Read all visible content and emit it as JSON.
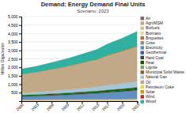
{
  "chart_data": {
    "type": "area",
    "stacked": true,
    "title": "Demand: Energy Demand Final Units",
    "subtitle": "Scenario: 2023",
    "ylabel": "Million GigaJoules",
    "x": [
      2000,
      2003,
      2006,
      2009,
      2012,
      2015,
      2017,
      2020,
      2023
    ],
    "series": [
      {
        "name": "Air",
        "color": "#8B6355",
        "values": [
          5,
          5,
          6,
          6,
          7,
          7,
          8,
          8,
          9
        ]
      },
      {
        "name": "Agri/MSM",
        "color": "#C8A882",
        "values": [
          8,
          9,
          10,
          11,
          12,
          13,
          14,
          15,
          16
        ]
      },
      {
        "name": "Biofuels",
        "color": "#D4C090",
        "values": [
          6,
          7,
          7,
          8,
          9,
          9,
          10,
          11,
          12
        ]
      },
      {
        "name": "Biomass",
        "color": "#E8D8A0",
        "values": [
          60,
          62,
          65,
          67,
          70,
          72,
          75,
          78,
          82
        ]
      },
      {
        "name": "Briquettes",
        "color": "#B87040",
        "values": [
          5,
          5,
          6,
          6,
          7,
          7,
          7,
          8,
          8
        ]
      },
      {
        "name": "Coke",
        "color": "#909090",
        "values": [
          15,
          16,
          18,
          19,
          21,
          22,
          24,
          25,
          27
        ]
      },
      {
        "name": "Electricity",
        "color": "#6090C0",
        "values": [
          180,
          200,
          225,
          255,
          290,
          330,
          370,
          420,
          480
        ]
      },
      {
        "name": "Geothermal",
        "color": "#4060A0",
        "values": [
          3,
          3,
          4,
          4,
          5,
          5,
          6,
          6,
          7
        ]
      },
      {
        "name": "Hard Coal",
        "color": "#404040",
        "values": [
          30,
          33,
          37,
          40,
          44,
          48,
          52,
          56,
          60
        ]
      },
      {
        "name": "Heat",
        "color": "#006000",
        "values": [
          45,
          50,
          56,
          62,
          70,
          78,
          85,
          95,
          108
        ]
      },
      {
        "name": "Lignite",
        "color": "#80A060",
        "values": [
          12,
          13,
          14,
          16,
          17,
          18,
          20,
          21,
          23
        ]
      },
      {
        "name": "Municipal Solid Waste",
        "color": "#906030",
        "values": [
          5,
          5,
          6,
          6,
          7,
          7,
          8,
          8,
          9
        ]
      },
      {
        "name": "Natural Gas",
        "color": "#A0C8D8",
        "values": [
          120,
          135,
          155,
          175,
          200,
          225,
          255,
          290,
          330
        ]
      },
      {
        "name": "Oil",
        "color": "#C0A888",
        "values": [
          1100,
          1180,
          1280,
          1380,
          1500,
          1620,
          1750,
          1900,
          2050
        ]
      },
      {
        "name": "Petroleum Coke",
        "color": "#E8D840",
        "values": [
          4,
          4,
          5,
          5,
          6,
          6,
          7,
          7,
          8
        ]
      },
      {
        "name": "Solar",
        "color": "#C8A000",
        "values": [
          1,
          1,
          2,
          3,
          5,
          8,
          12,
          17,
          25
        ]
      },
      {
        "name": "Wind",
        "color": "#C03030",
        "values": [
          1,
          1,
          2,
          3,
          4,
          6,
          9,
          13,
          18
        ]
      },
      {
        "name": "Wood",
        "color": "#30B0A0",
        "values": [
          300,
          340,
          390,
          445,
          510,
          580,
          660,
          750,
          860
        ]
      }
    ],
    "xlim": [
      2000,
      2023
    ],
    "xticks": [
      2000,
      2003,
      2006,
      2009,
      2012,
      2015,
      2017,
      2020,
      2023
    ],
    "ylim": [
      0,
      5000
    ],
    "yticks": [
      500,
      {
        "value": 1000,
        "label": "1,000"
      },
      {
        "value": 1500,
        "label": "1,500"
      },
      {
        "value": 2000,
        "label": "2,000"
      },
      {
        "value": 2500,
        "label": "2,500"
      },
      {
        "value": 3000,
        "label": "3,000"
      },
      {
        "value": 3500,
        "label": "3,500"
      },
      {
        "value": 4000,
        "label": "4,000"
      },
      {
        "value": 4500,
        "label": "4,500"
      },
      {
        "value": 5000,
        "label": "5,000"
      }
    ],
    "grid": true,
    "legend": "right"
  }
}
